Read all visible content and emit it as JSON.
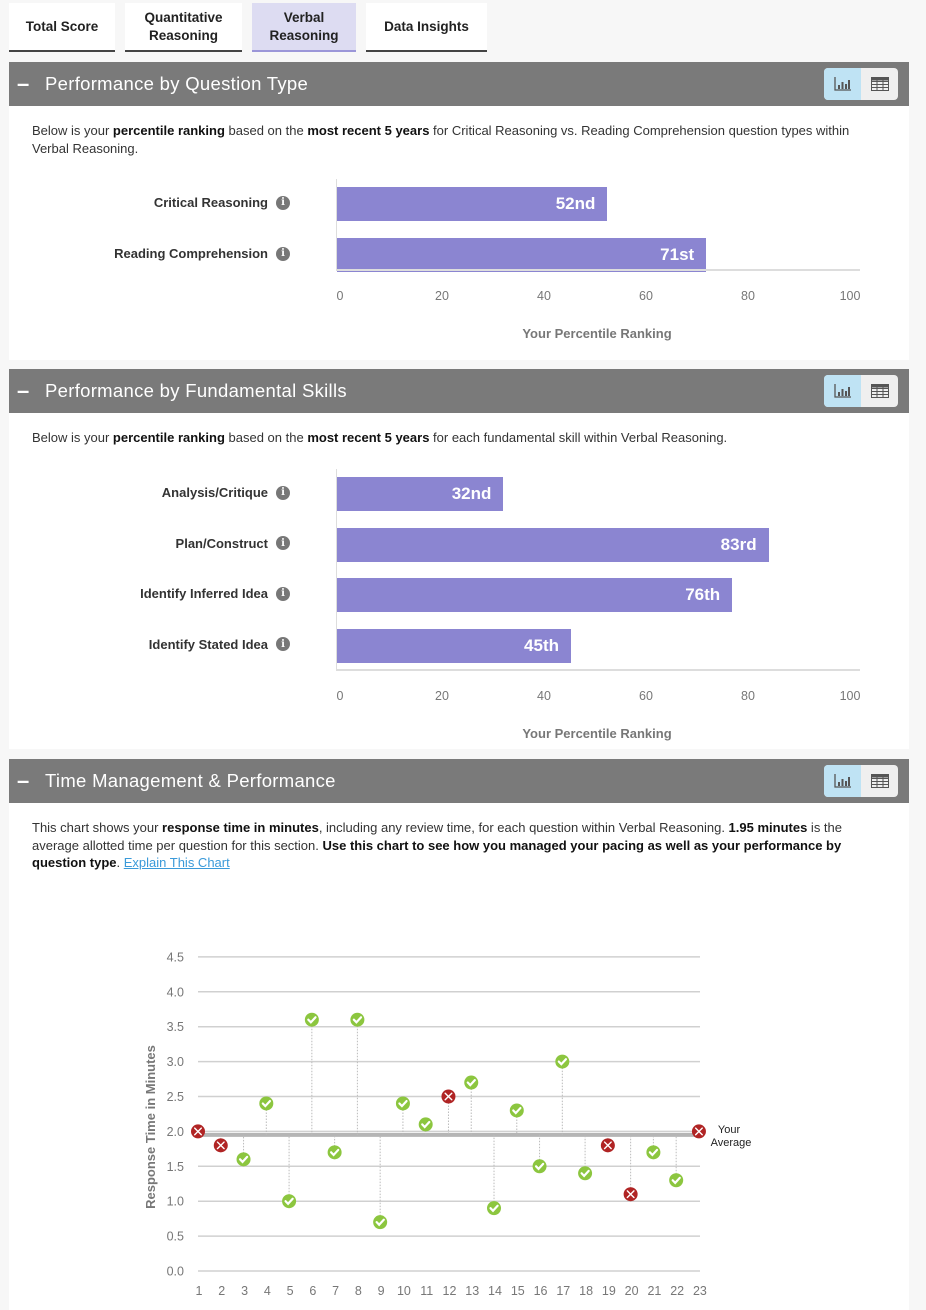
{
  "tabs": [
    {
      "label": "Total Score",
      "active": false
    },
    {
      "label": "Quantitative Reasoning",
      "active": false
    },
    {
      "label": "Verbal Reasoning",
      "active": true
    },
    {
      "label": "Data Insights",
      "active": false
    }
  ],
  "icons": {
    "collapse": "minus-icon",
    "chart_view": "bar-chart-icon",
    "table_view": "table-grid-icon",
    "info": "info-circle-icon",
    "correct": "check-circle-icon",
    "incorrect": "x-circle-icon"
  },
  "colors": {
    "bar": "#8b85d1",
    "header": "#7a7a7a",
    "active_tab": "#dddcf2",
    "toggle_active": "#bfe3f4",
    "correct": "#8cc63f",
    "incorrect": "#b02424",
    "link": "#3a9ad9"
  },
  "sections": {
    "question_type": {
      "title": "Performance by Question Type",
      "collapse_symbol": "–",
      "desc": {
        "p1": "Below is your ",
        "b1": "percentile ranking",
        "p2": " based on the ",
        "b2": "most recent 5 years",
        "p3": " for Critical Reasoning vs. Reading Comprehension question types within Verbal Reasoning."
      }
    },
    "fundamental_skills": {
      "title": "Performance by Fundamental Skills",
      "collapse_symbol": "–",
      "desc": {
        "p1": "Below is your ",
        "b1": "percentile ranking",
        "p2": " based on the ",
        "b2": "most recent 5 years",
        "p3": " for each fundamental skill within Verbal Reasoning."
      }
    },
    "time_management": {
      "title": "Time Management & Performance",
      "collapse_symbol": "–",
      "desc": {
        "p1": "This chart shows your ",
        "b1": "response time in minutes",
        "p2": ", including any review time, for each question within Verbal Reasoning. ",
        "b2": "1.95 minutes",
        "p3": " is the average allotted time per question for this section. ",
        "b3": "Use this chart to see how you managed your pacing as well as your performance by question type",
        "p4": ". ",
        "link": "Explain This Chart"
      }
    }
  },
  "chart_data": [
    {
      "type": "bar",
      "orientation": "horizontal",
      "categories": [
        "Critical Reasoning",
        "Reading Comprehension"
      ],
      "values": [
        52,
        71
      ],
      "data_labels": [
        "52nd",
        "71st"
      ],
      "xlabel": "Your Percentile Ranking",
      "xticks": [
        "0",
        "20",
        "40",
        "60",
        "80",
        "100"
      ],
      "xlim": [
        0,
        100
      ],
      "grid": false
    },
    {
      "type": "bar",
      "orientation": "horizontal",
      "categories": [
        "Analysis/Critique",
        "Plan/Construct",
        "Identify Inferred Idea",
        "Identify Stated Idea"
      ],
      "values": [
        32,
        83,
        76,
        45
      ],
      "data_labels": [
        "32nd",
        "83rd",
        "76th",
        "45th"
      ],
      "xlabel": "Your Percentile Ranking",
      "xticks": [
        "0",
        "20",
        "40",
        "60",
        "80",
        "100"
      ],
      "xlim": [
        0,
        100
      ],
      "grid": false
    },
    {
      "type": "scatter",
      "ylabel": "Response Time in Minutes",
      "ylim": [
        0,
        4.5
      ],
      "yticks": [
        "0.0",
        "0.5",
        "1.0",
        "1.5",
        "2.0",
        "2.5",
        "3.0",
        "3.5",
        "4.0",
        "4.5"
      ],
      "x": [
        1,
        2,
        3,
        4,
        5,
        6,
        7,
        8,
        9,
        10,
        11,
        12,
        13,
        14,
        15,
        16,
        17,
        18,
        19,
        20,
        21,
        22,
        23
      ],
      "y": [
        2.0,
        1.8,
        1.6,
        2.4,
        1.0,
        3.6,
        1.7,
        3.6,
        0.7,
        2.4,
        2.1,
        2.5,
        2.7,
        0.9,
        2.3,
        1.5,
        3.0,
        1.4,
        1.8,
        1.1,
        1.7,
        1.3,
        2.0
      ],
      "correct": [
        false,
        false,
        true,
        true,
        true,
        true,
        true,
        true,
        true,
        true,
        true,
        false,
        true,
        true,
        true,
        true,
        true,
        true,
        false,
        false,
        true,
        true,
        false
      ],
      "average": 1.95,
      "average_label": [
        "Your",
        "Average"
      ],
      "grid": true
    }
  ]
}
